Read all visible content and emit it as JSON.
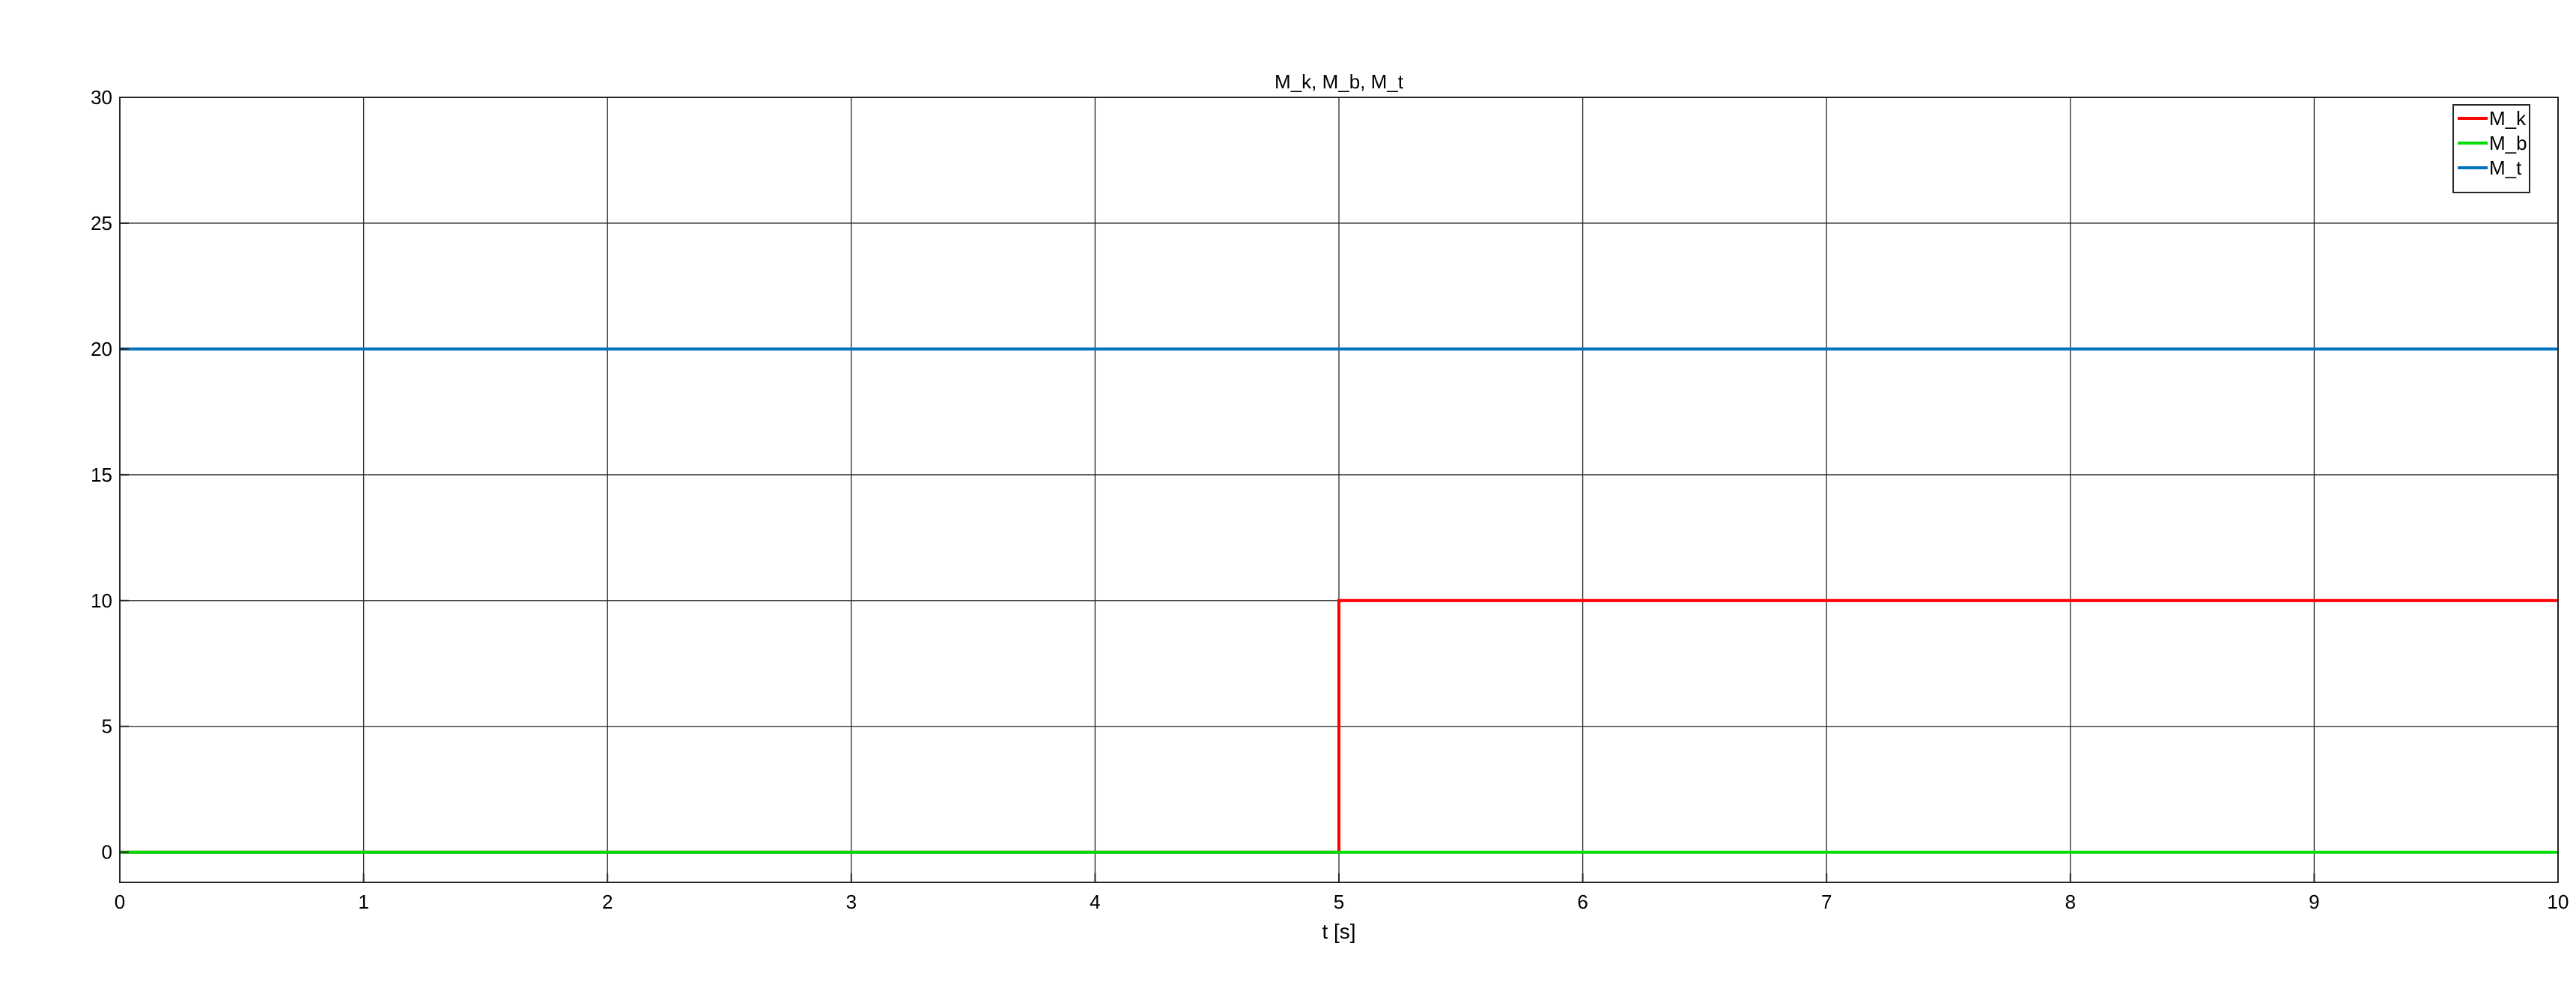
{
  "chart_data": {
    "type": "line",
    "title": "M_k, M_b, M_t",
    "xlabel": "t [s]",
    "ylabel": "",
    "xlim": [
      0,
      10
    ],
    "ylim": [
      -1.2,
      30
    ],
    "xticks": [
      0,
      1,
      2,
      3,
      4,
      5,
      6,
      7,
      8,
      9,
      10
    ],
    "yticks": [
      0,
      5,
      10,
      15,
      20,
      25,
      30
    ],
    "grid": true,
    "legend_position": "top-right",
    "series": [
      {
        "name": "M_k",
        "color": "#ff0000",
        "x": [
          0,
          5,
          5,
          10
        ],
        "y": [
          0,
          0,
          10,
          10
        ]
      },
      {
        "name": "M_b",
        "color": "#00dd00",
        "x": [
          0,
          10
        ],
        "y": [
          0,
          0
        ]
      },
      {
        "name": "M_t",
        "color": "#0072bd",
        "x": [
          0,
          10
        ],
        "y": [
          20,
          20
        ]
      }
    ]
  }
}
